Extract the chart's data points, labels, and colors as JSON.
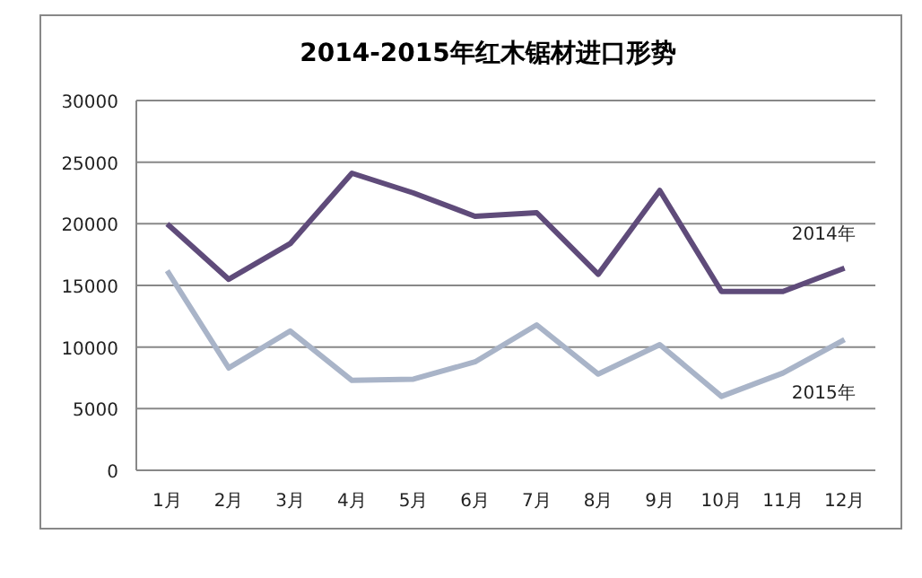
{
  "chart_data": {
    "type": "line",
    "title": "2014-2015年红木锯材进口形势",
    "categories": [
      "1月",
      "2月",
      "3月",
      "4月",
      "5月",
      "6月",
      "7月",
      "8月",
      "9月",
      "10月",
      "11月",
      "12月"
    ],
    "series": [
      {
        "name": "2014年",
        "color": "#5f4b7a",
        "values": [
          20000,
          15500,
          18400,
          24100,
          22500,
          20600,
          20900,
          15900,
          22700,
          14500,
          14500,
          16400
        ]
      },
      {
        "name": "2015年",
        "color": "#a9b4c8",
        "values": [
          16200,
          8300,
          11300,
          7300,
          7400,
          8800,
          11800,
          7800,
          10200,
          6000,
          7900,
          10600
        ]
      }
    ],
    "ylim": [
      0,
      30000
    ],
    "yticks": [
      0,
      5000,
      10000,
      15000,
      20000,
      25000,
      30000
    ],
    "grid": "y",
    "marker": "none",
    "line_style": "solid"
  }
}
